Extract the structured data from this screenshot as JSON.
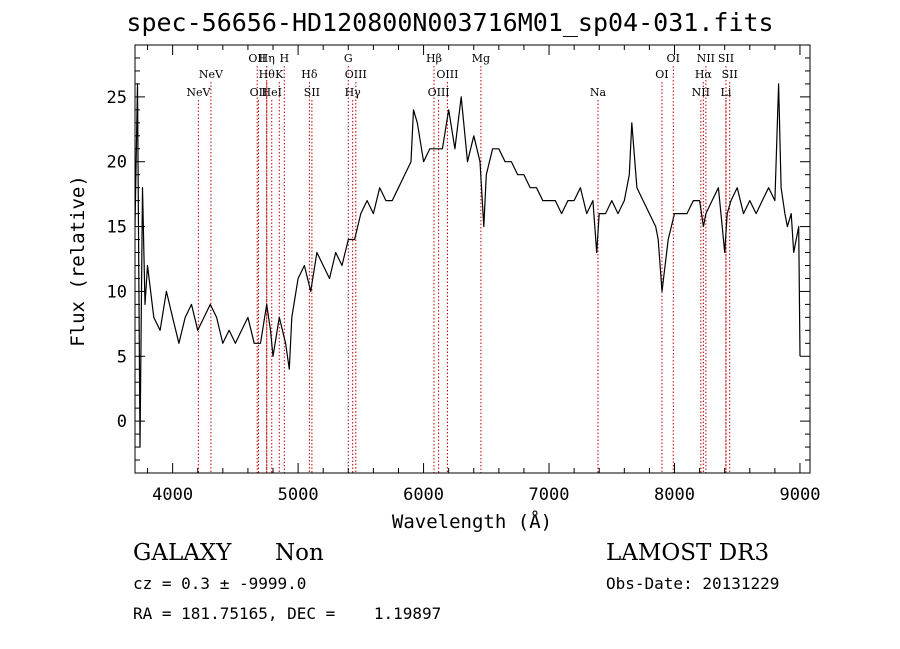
{
  "chart_data": {
    "type": "line",
    "title": "spec-56656-HD120800N003716M01_sp04-031.fits",
    "xlabel": "Wavelength (Å)",
    "ylabel": "Flux (relative)",
    "xlim": [
      3700,
      9080
    ],
    "ylim": [
      -4,
      29
    ],
    "x_ticks": [
      4000,
      5000,
      6000,
      7000,
      8000,
      9000
    ],
    "y_ticks": [
      0,
      5,
      10,
      15,
      20,
      25
    ],
    "series": [
      {
        "name": "spectrum",
        "x": [
          3700,
          3720,
          3740,
          3760,
          3780,
          3800,
          3850,
          3900,
          3950,
          4000,
          4050,
          4100,
          4150,
          4200,
          4250,
          4300,
          4350,
          4400,
          4450,
          4500,
          4550,
          4600,
          4650,
          4700,
          4750,
          4780,
          4800,
          4850,
          4900,
          4930,
          4950,
          5000,
          5050,
          5100,
          5150,
          5200,
          5250,
          5300,
          5350,
          5400,
          5450,
          5500,
          5550,
          5600,
          5650,
          5700,
          5750,
          5800,
          5850,
          5900,
          5920,
          5950,
          6000,
          6050,
          6100,
          6150,
          6200,
          6250,
          6300,
          6350,
          6400,
          6450,
          6480,
          6500,
          6550,
          6600,
          6650,
          6700,
          6750,
          6800,
          6850,
          6900,
          6950,
          7000,
          7050,
          7100,
          7150,
          7200,
          7250,
          7300,
          7350,
          7380,
          7400,
          7450,
          7500,
          7550,
          7600,
          7640,
          7660,
          7700,
          7750,
          7800,
          7850,
          7870,
          7900,
          7950,
          8000,
          8050,
          8100,
          8150,
          8200,
          8230,
          8250,
          8300,
          8350,
          8380,
          8400,
          8420,
          8450,
          8500,
          8550,
          8600,
          8650,
          8700,
          8750,
          8800,
          8830,
          8850,
          8880,
          8900,
          8930,
          8950,
          8970,
          8990,
          9000
        ],
        "y": [
          15,
          26,
          -2,
          18,
          9,
          12,
          8,
          7,
          10,
          8,
          6,
          8,
          9,
          7,
          8,
          9,
          8,
          6,
          7,
          6,
          7,
          8,
          6,
          6,
          9,
          7,
          5,
          8,
          6,
          4,
          8,
          11,
          12,
          10,
          13,
          12,
          11,
          13,
          12,
          14,
          14,
          16,
          17,
          16,
          18,
          17,
          17,
          18,
          19,
          20,
          24,
          23,
          20,
          21,
          21,
          21,
          24,
          21,
          25,
          20,
          22,
          20,
          15,
          19,
          21,
          21,
          20,
          20,
          19,
          19,
          18,
          18,
          17,
          17,
          17,
          16,
          17,
          17,
          18,
          16,
          17,
          13,
          16,
          16,
          17,
          16,
          17,
          19,
          23,
          18,
          17,
          16,
          15,
          14,
          10,
          14,
          16,
          16,
          16,
          17,
          17,
          15,
          16,
          17,
          18,
          15,
          13,
          16,
          17,
          18,
          16,
          17,
          16,
          17,
          18,
          17,
          26,
          18,
          16,
          15,
          16,
          13,
          14,
          15,
          5
        ],
        "color": "#000000"
      }
    ],
    "lines": [
      {
        "name": "NeV",
        "x": 4205,
        "row": 3
      },
      {
        "name": "NeV",
        "x": 4305,
        "row": 2
      },
      {
        "name": "OII",
        "x": 4674,
        "row": 1
      },
      {
        "name": "OII",
        "x": 4684,
        "row": 3
      },
      {
        "name": "Hη",
        "x": 4750,
        "row": 1
      },
      {
        "name": "Hθ",
        "x": 4750,
        "row": 2
      },
      {
        "name": "HeI",
        "x": 4790,
        "row": 3
      },
      {
        "name": "H",
        "x": 4890,
        "row": 1
      },
      {
        "name": "K",
        "x": 4850,
        "row": 2
      },
      {
        "name": "Hδ",
        "x": 5090,
        "row": 2
      },
      {
        "name": "SII",
        "x": 5110,
        "row": 3
      },
      {
        "name": "G",
        "x": 5400,
        "row": 1
      },
      {
        "name": "OIII",
        "x": 5460,
        "row": 2
      },
      {
        "name": "Hγ",
        "x": 5435,
        "row": 3
      },
      {
        "name": "Hβ",
        "x": 6083,
        "row": 1
      },
      {
        "name": "OIII",
        "x": 6190,
        "row": 2
      },
      {
        "name": "OIII",
        "x": 6120,
        "row": 3
      },
      {
        "name": "Mg",
        "x": 6457,
        "row": 1
      },
      {
        "name": "Na",
        "x": 7390,
        "row": 3
      },
      {
        "name": "OI",
        "x": 7990,
        "row": 1
      },
      {
        "name": "OI",
        "x": 7900,
        "row": 2
      },
      {
        "name": "NII",
        "x": 8250,
        "row": 1
      },
      {
        "name": "Hα",
        "x": 8230,
        "row": 2
      },
      {
        "name": "NII",
        "x": 8210,
        "row": 3
      },
      {
        "name": "SII",
        "x": 8410,
        "row": 1
      },
      {
        "name": "SII",
        "x": 8440,
        "row": 2
      },
      {
        "name": "Li",
        "x": 8410,
        "row": 3
      }
    ],
    "line_color": "#c00000"
  },
  "info": {
    "object_class": "GALAXY",
    "subclass": "Non",
    "survey": "LAMOST DR3",
    "cz": "cz = 0.3 ± -9999.0",
    "obs_date": "Obs-Date: 20131229",
    "coords": "RA = 181.75165, DEC =    1.19897"
  }
}
